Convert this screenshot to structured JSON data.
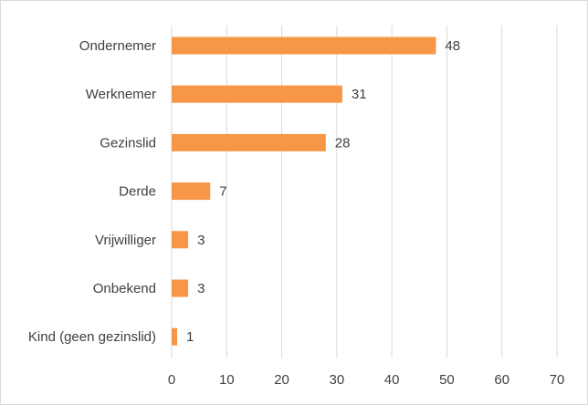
{
  "chart_data": {
    "type": "bar",
    "orientation": "horizontal",
    "categories": [
      "Ondernemer",
      "Werknemer",
      "Gezinslid",
      "Derde",
      "Vrijwilliger",
      "Onbekend",
      "Kind (geen gezinslid)"
    ],
    "values": [
      48,
      31,
      28,
      7,
      3,
      3,
      1
    ],
    "data_labels": [
      "48",
      "31",
      "28",
      "7",
      "3",
      "3",
      "1"
    ],
    "xlim": [
      0,
      70
    ],
    "xticks": [
      "0",
      "10",
      "20",
      "30",
      "40",
      "50",
      "60",
      "70"
    ],
    "grid": "vertical, light",
    "legend": "none",
    "bar_color": "#F79646",
    "title": "",
    "xlabel": "",
    "ylabel": ""
  }
}
